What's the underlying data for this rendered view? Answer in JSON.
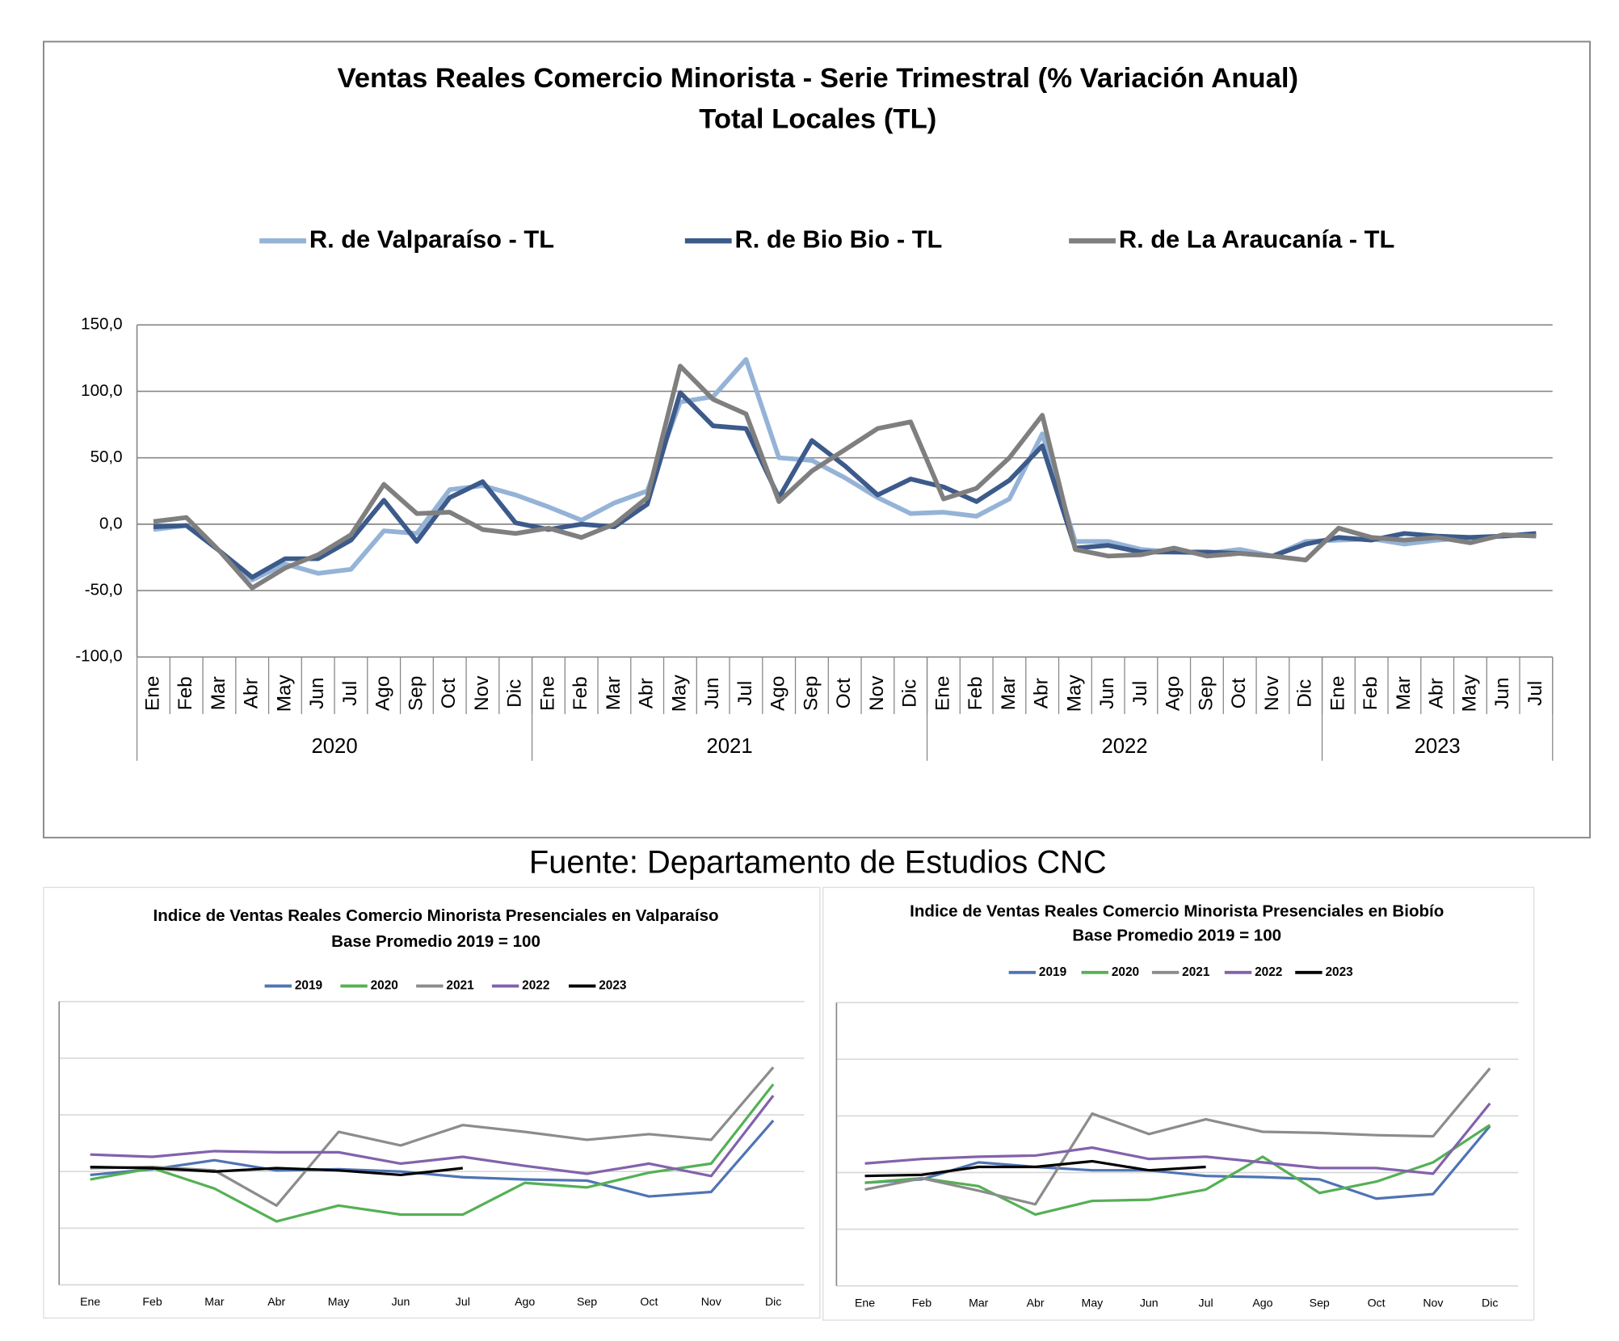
{
  "chart_data": [
    {
      "type": "line",
      "title": "Ventas Reales Comercio Minorista - Serie Trimestral (% Variación Anual)",
      "subtitle": "Total Locales (TL)",
      "categories": [
        "Ene",
        "Feb",
        "Mar",
        "Abr",
        "May",
        "Jun",
        "Jul",
        "Ago",
        "Sep",
        "Oct",
        "Nov",
        "Dic",
        "Ene",
        "Feb",
        "Mar",
        "Abr",
        "May",
        "Jun",
        "Jul",
        "Ago",
        "Sep",
        "Oct",
        "Nov",
        "Dic",
        "Ene",
        "Feb",
        "Mar",
        "Abr",
        "May",
        "Jun",
        "Jul",
        "Ago",
        "Sep",
        "Oct",
        "Nov",
        "Dic",
        "Ene",
        "Feb",
        "Mar",
        "Abr",
        "May",
        "Jun",
        "Jul"
      ],
      "groups": [
        {
          "label": "2020",
          "span": 12
        },
        {
          "label": "2021",
          "span": 12
        },
        {
          "label": "2022",
          "span": 12
        },
        {
          "label": "2023",
          "span": 7
        }
      ],
      "series": [
        {
          "name": "R. de Valparaíso - TL",
          "color": "#95b3d7",
          "values": [
            -4,
            -1,
            -20,
            -42,
            -30,
            -37,
            -34,
            -5,
            -7,
            26,
            29,
            22,
            13,
            3,
            16,
            25,
            92,
            96,
            124,
            50,
            48,
            35,
            20,
            8,
            9,
            6,
            19,
            68,
            -13,
            -13,
            -19,
            -21,
            -22,
            -19,
            -24,
            -13,
            -12,
            -11,
            -15,
            -12,
            -10,
            -9,
            -8
          ]
        },
        {
          "name": "R. de Bio Bio - TL",
          "color": "#3c5a8a",
          "values": [
            -2,
            -1,
            -20,
            -40,
            -26,
            -26,
            -12,
            18,
            -13,
            20,
            32,
            1,
            -4,
            0,
            -2,
            15,
            99,
            74,
            72,
            20,
            63,
            44,
            22,
            34,
            28,
            17,
            33,
            59,
            -18,
            -16,
            -21,
            -21,
            -21,
            -22,
            -24,
            -15,
            -10,
            -12,
            -7,
            -9,
            -10,
            -9,
            -7
          ]
        },
        {
          "name": "R. de La Araucanía - TL",
          "color": "#7f7f7f",
          "values": [
            2,
            5,
            -20,
            -48,
            -33,
            -23,
            -8,
            30,
            8,
            9,
            -4,
            -7,
            -3,
            -10,
            0,
            20,
            119,
            94,
            83,
            17,
            40,
            56,
            72,
            77,
            19,
            27,
            50,
            82,
            -19,
            -24,
            -23,
            -18,
            -24,
            -22,
            -24,
            -27,
            -3,
            -10,
            -12,
            -10,
            -14,
            -8,
            -9
          ]
        }
      ],
      "ylim": [
        -100,
        150
      ],
      "yticks": [
        {
          "value": -100,
          "label": "-100,0"
        },
        {
          "value": -50,
          "label": "-50,0"
        },
        {
          "value": 0,
          "label": "0,0"
        },
        {
          "value": 50,
          "label": "50,0"
        },
        {
          "value": 100,
          "label": "100,0"
        },
        {
          "value": 150,
          "label": "150,0"
        }
      ],
      "grid": true,
      "legend": "top"
    },
    {
      "type": "line",
      "title": "Indice de Ventas Reales Comercio Minorista Presenciales en Valparaíso",
      "subtitle": "Base Promedio 2019 = 100",
      "categories": [
        "Ene",
        "Feb",
        "Mar",
        "Abr",
        "May",
        "Jun",
        "Jul",
        "Ago",
        "Sep",
        "Oct",
        "Nov",
        "Dic"
      ],
      "series": [
        {
          "name": "2019",
          "color": "#4f74b4",
          "values": [
            97,
            102,
            110,
            101,
            102,
            100,
            95,
            93,
            92,
            78,
            82,
            145
          ]
        },
        {
          "name": "2020",
          "color": "#55b055",
          "values": [
            93,
            103,
            85,
            56,
            70,
            62,
            62,
            90,
            86,
            99,
            107,
            177
          ]
        },
        {
          "name": "2021",
          "color": "#8c8c8c",
          "values": [
            103,
            104,
            101,
            70,
            135,
            123,
            141,
            135,
            128,
            133,
            128,
            192
          ]
        },
        {
          "name": "2022",
          "color": "#8262ac",
          "values": [
            115,
            113,
            118,
            117,
            117,
            107,
            113,
            105,
            98,
            107,
            96,
            167
          ]
        },
        {
          "name": "2023",
          "color": "#000000",
          "values": [
            104,
            103,
            100,
            103,
            101,
            97,
            103,
            null,
            null,
            null,
            null,
            null
          ]
        }
      ],
      "ylim": [
        0,
        250
      ],
      "yticks": [
        0,
        50,
        100,
        150,
        200,
        250
      ],
      "ytick_labels": false,
      "grid": true,
      "legend": "top"
    },
    {
      "type": "line",
      "title": "Indice de Ventas Reales Comercio Minorista Presenciales en Biobío",
      "subtitle": "Base Promedio 2019 = 100",
      "categories": [
        "Ene",
        "Feb",
        "Mar",
        "Abr",
        "May",
        "Jun",
        "Jul",
        "Ago",
        "Sep",
        "Oct",
        "Nov",
        "Dic"
      ],
      "series": [
        {
          "name": "2019",
          "color": "#4f74b4",
          "values": [
            91,
            94,
            109,
            105,
            102,
            102,
            97,
            96,
            94,
            77,
            81,
            141
          ]
        },
        {
          "name": "2020",
          "color": "#55b055",
          "values": [
            91,
            95,
            88,
            63,
            75,
            76,
            85,
            114,
            82,
            92,
            109,
            142
          ]
        },
        {
          "name": "2021",
          "color": "#8c8c8c",
          "values": [
            85,
            95,
            84,
            72,
            152,
            134,
            147,
            136,
            135,
            133,
            132,
            192
          ]
        },
        {
          "name": "2022",
          "color": "#8262ac",
          "values": [
            108,
            112,
            114,
            115,
            122,
            112,
            114,
            109,
            104,
            104,
            99,
            161
          ]
        },
        {
          "name": "2023",
          "color": "#000000",
          "values": [
            97,
            98,
            105,
            105,
            110,
            102,
            105,
            null,
            null,
            null,
            null,
            null
          ]
        }
      ],
      "ylim": [
        0,
        250
      ],
      "yticks": [
        0,
        50,
        100,
        150,
        200,
        250
      ],
      "ytick_labels": false,
      "grid": true,
      "legend": "top"
    }
  ],
  "source": "Fuente: Departamento de Estudios CNC"
}
